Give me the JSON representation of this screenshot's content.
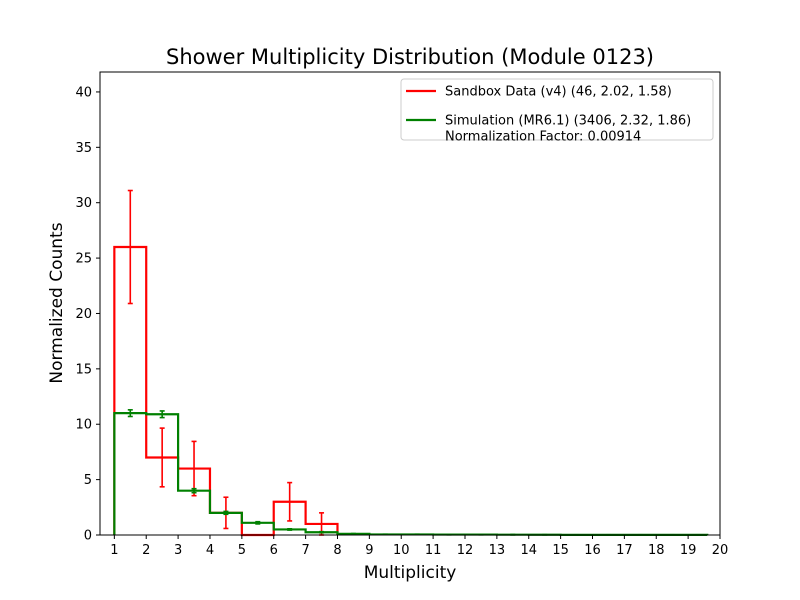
{
  "chart_data": {
    "type": "step-histogram",
    "title": "Shower Multiplicity Distribution (Module 0123)",
    "xlabel": "Multiplicity",
    "ylabel": "Normalized Counts",
    "xlim": [
      0.55,
      20.0
    ],
    "ylim": [
      0,
      41.8
    ],
    "x_ticks": [
      1,
      2,
      3,
      4,
      5,
      6,
      7,
      8,
      9,
      10,
      11,
      12,
      13,
      14,
      15,
      16,
      17,
      18,
      19,
      20
    ],
    "y_ticks": [
      0,
      5,
      10,
      15,
      20,
      25,
      30,
      35,
      40
    ],
    "grid": false,
    "legend_position": "top-right",
    "series": [
      {
        "name": "Sandbox Data (v4) (46, 2.02, 1.58)",
        "color": "#ff0000",
        "bin_edges": [
          1,
          2,
          3,
          4,
          5,
          6,
          7,
          8
        ],
        "values": [
          26,
          7,
          6,
          2,
          0,
          3,
          1
        ],
        "errors": [
          5.1,
          2.65,
          2.45,
          1.41,
          0,
          1.73,
          1.0
        ]
      },
      {
        "name": "Simulation (MR6.1) (3406, 2.32, 1.86)",
        "extra_legend_line": "Normalization Factor: 0.00914",
        "color": "#008000",
        "bin_edges": [
          1,
          2,
          3,
          4,
          5,
          6,
          7,
          8,
          9,
          10,
          11,
          12,
          13,
          14,
          15,
          16,
          17,
          18,
          19,
          19.6
        ],
        "values": [
          11.0,
          10.9,
          4.0,
          2.0,
          1.1,
          0.5,
          0.25,
          0.1,
          0.05,
          0.05,
          0.04,
          0.04,
          0.03,
          0.02,
          0.01,
          0.01,
          0.01,
          0.01,
          0.01
        ],
        "errors": [
          0.3,
          0.3,
          0.18,
          0.13,
          0.1,
          0.06,
          0.05,
          0.03,
          0.02,
          0.02,
          0.02,
          0.02,
          0.02,
          0.01,
          0.01,
          0.01,
          0.01,
          0.01,
          0.01
        ]
      }
    ]
  }
}
